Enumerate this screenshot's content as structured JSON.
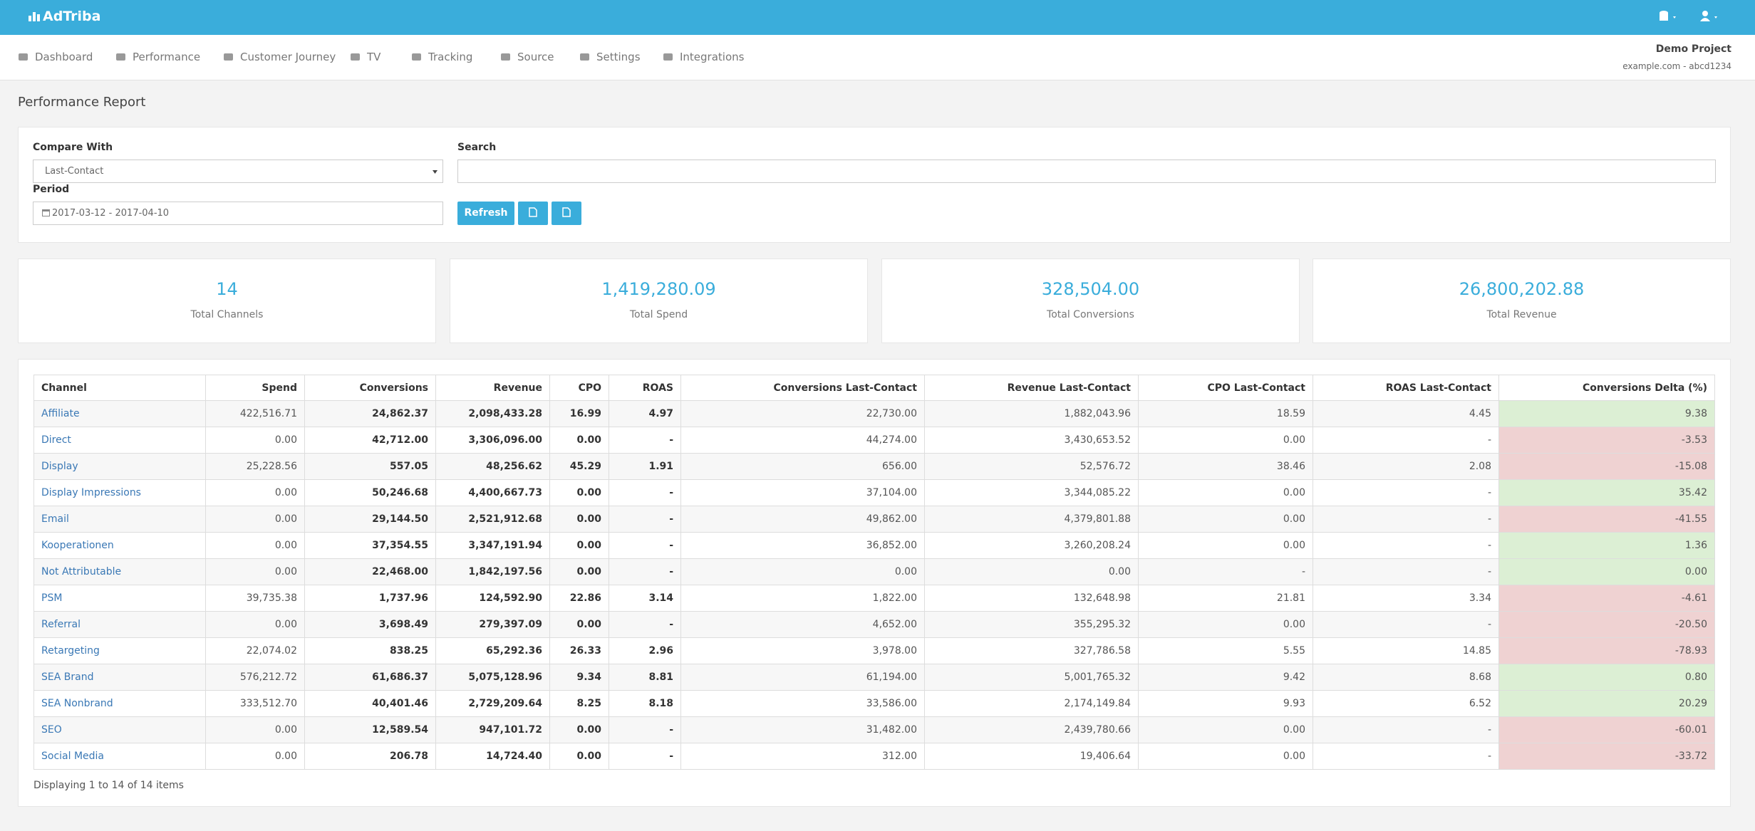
{
  "brand": "AdTriba",
  "nav": [
    "Dashboard",
    "Performance",
    "Customer Journey",
    "TV",
    "Tracking",
    "Source",
    "Settings",
    "Integrations"
  ],
  "project": {
    "name": "Demo Project",
    "domain": "example.com - abcd1234"
  },
  "page_title": "Performance Report",
  "filters": {
    "compare_label": "Compare With",
    "compare_value": "Last-Contact",
    "search_label": "Search",
    "period_label": "Period",
    "period_value": "2017-03-12 - 2017-04-10",
    "refresh": "Refresh"
  },
  "stats": [
    {
      "value": "14",
      "label": "Total Channels"
    },
    {
      "value": "1,419,280.09",
      "label": "Total Spend"
    },
    {
      "value": "328,504.00",
      "label": "Total Conversions"
    },
    {
      "value": "26,800,202.88",
      "label": "Total Revenue"
    }
  ],
  "table": {
    "columns": [
      "Channel",
      "Spend",
      "Conversions",
      "Revenue",
      "CPO",
      "ROAS",
      "Conversions Last-Contact",
      "Revenue Last-Contact",
      "CPO Last-Contact",
      "ROAS Last-Contact",
      "Conversions Delta (%)"
    ],
    "rows": [
      [
        "Affiliate",
        "422,516.71",
        "24,862.37",
        "2,098,433.28",
        "16.99",
        "4.97",
        "22,730.00",
        "1,882,043.96",
        "18.59",
        "4.45",
        "9.38"
      ],
      [
        "Direct",
        "0.00",
        "42,712.00",
        "3,306,096.00",
        "0.00",
        "-",
        "44,274.00",
        "3,430,653.52",
        "0.00",
        "-",
        "-3.53"
      ],
      [
        "Display",
        "25,228.56",
        "557.05",
        "48,256.62",
        "45.29",
        "1.91",
        "656.00",
        "52,576.72",
        "38.46",
        "2.08",
        "-15.08"
      ],
      [
        "Display Impressions",
        "0.00",
        "50,246.68",
        "4,400,667.73",
        "0.00",
        "-",
        "37,104.00",
        "3,344,085.22",
        "0.00",
        "-",
        "35.42"
      ],
      [
        "Email",
        "0.00",
        "29,144.50",
        "2,521,912.68",
        "0.00",
        "-",
        "49,862.00",
        "4,379,801.88",
        "0.00",
        "-",
        "-41.55"
      ],
      [
        "Kooperationen",
        "0.00",
        "37,354.55",
        "3,347,191.94",
        "0.00",
        "-",
        "36,852.00",
        "3,260,208.24",
        "0.00",
        "-",
        "1.36"
      ],
      [
        "Not Attributable",
        "0.00",
        "22,468.00",
        "1,842,197.56",
        "0.00",
        "-",
        "0.00",
        "0.00",
        "-",
        "-",
        "0.00"
      ],
      [
        "PSM",
        "39,735.38",
        "1,737.96",
        "124,592.90",
        "22.86",
        "3.14",
        "1,822.00",
        "132,648.98",
        "21.81",
        "3.34",
        "-4.61"
      ],
      [
        "Referral",
        "0.00",
        "3,698.49",
        "279,397.09",
        "0.00",
        "-",
        "4,652.00",
        "355,295.32",
        "0.00",
        "-",
        "-20.50"
      ],
      [
        "Retargeting",
        "22,074.02",
        "838.25",
        "65,292.36",
        "26.33",
        "2.96",
        "3,978.00",
        "327,786.58",
        "5.55",
        "14.85",
        "-78.93"
      ],
      [
        "SEA Brand",
        "576,212.72",
        "61,686.37",
        "5,075,128.96",
        "9.34",
        "8.81",
        "61,194.00",
        "5,001,765.32",
        "9.42",
        "8.68",
        "0.80"
      ],
      [
        "SEA Nonbrand",
        "333,512.70",
        "40,401.46",
        "2,729,209.64",
        "8.25",
        "8.18",
        "33,586.00",
        "2,174,149.84",
        "9.93",
        "6.52",
        "20.29"
      ],
      [
        "SEO",
        "0.00",
        "12,589.54",
        "947,101.72",
        "0.00",
        "-",
        "31,482.00",
        "2,439,780.66",
        "0.00",
        "-",
        "-60.01"
      ],
      [
        "Social Media",
        "0.00",
        "206.78",
        "14,724.40",
        "0.00",
        "-",
        "312.00",
        "19,406.64",
        "0.00",
        "-",
        "-33.72"
      ]
    ]
  },
  "footer": "Displaying 1 to 14 of 14 items"
}
